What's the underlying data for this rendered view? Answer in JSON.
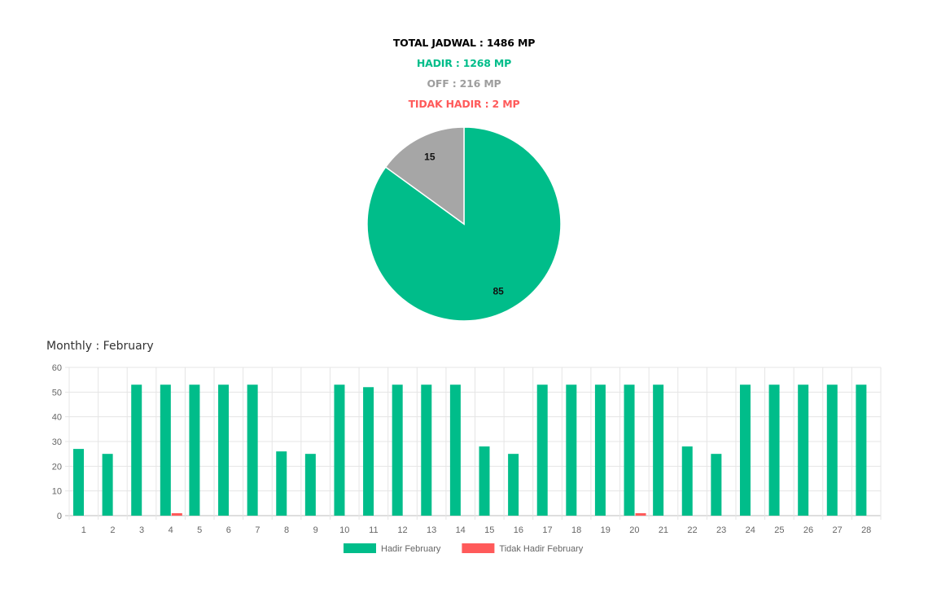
{
  "summary": {
    "total": "TOTAL JADWAL : 1486 MP",
    "hadir": "HADIR : 1268 MP",
    "off": "OFF : 216 MP",
    "tidak_hadir": "TIDAK HADIR : 2 MP"
  },
  "colors": {
    "hadir": "#00bd8a",
    "off": "#a6a6a6",
    "tidak_hadir": "#ff5a5a",
    "grid": "#e5e5e5",
    "tick": "#666666"
  },
  "monthly_title": "Monthly : February",
  "chart_data": [
    {
      "type": "pie",
      "labels": [
        "",
        ""
      ],
      "values": [
        85,
        15
      ],
      "data_labels": [
        "85",
        "15"
      ],
      "colors": [
        "#00bd8a",
        "#a6a6a6"
      ]
    },
    {
      "type": "bar",
      "categories": [
        "1",
        "2",
        "3",
        "4",
        "5",
        "6",
        "7",
        "8",
        "9",
        "10",
        "11",
        "12",
        "13",
        "14",
        "15",
        "16",
        "17",
        "18",
        "19",
        "20",
        "21",
        "22",
        "23",
        "24",
        "25",
        "26",
        "27",
        "28"
      ],
      "series": [
        {
          "name": "Hadir February",
          "color": "#00bd8a",
          "values": [
            27,
            25,
            53,
            53,
            53,
            53,
            53,
            26,
            25,
            53,
            52,
            53,
            53,
            53,
            28,
            25,
            53,
            53,
            53,
            53,
            53,
            28,
            25,
            53,
            53,
            53,
            53,
            53
          ]
        },
        {
          "name": "Tidak Hadir February",
          "color": "#ff5a5a",
          "values": [
            0,
            0,
            0,
            1,
            0,
            0,
            0,
            0,
            0,
            0,
            0,
            0,
            0,
            0,
            0,
            0,
            0,
            0,
            0,
            1,
            0,
            0,
            0,
            0,
            0,
            0,
            0,
            0
          ]
        }
      ],
      "ylim": [
        0,
        60
      ],
      "yticks": [
        0,
        10,
        20,
        30,
        40,
        50,
        60
      ],
      "grid": true,
      "legend": "bottom"
    }
  ]
}
